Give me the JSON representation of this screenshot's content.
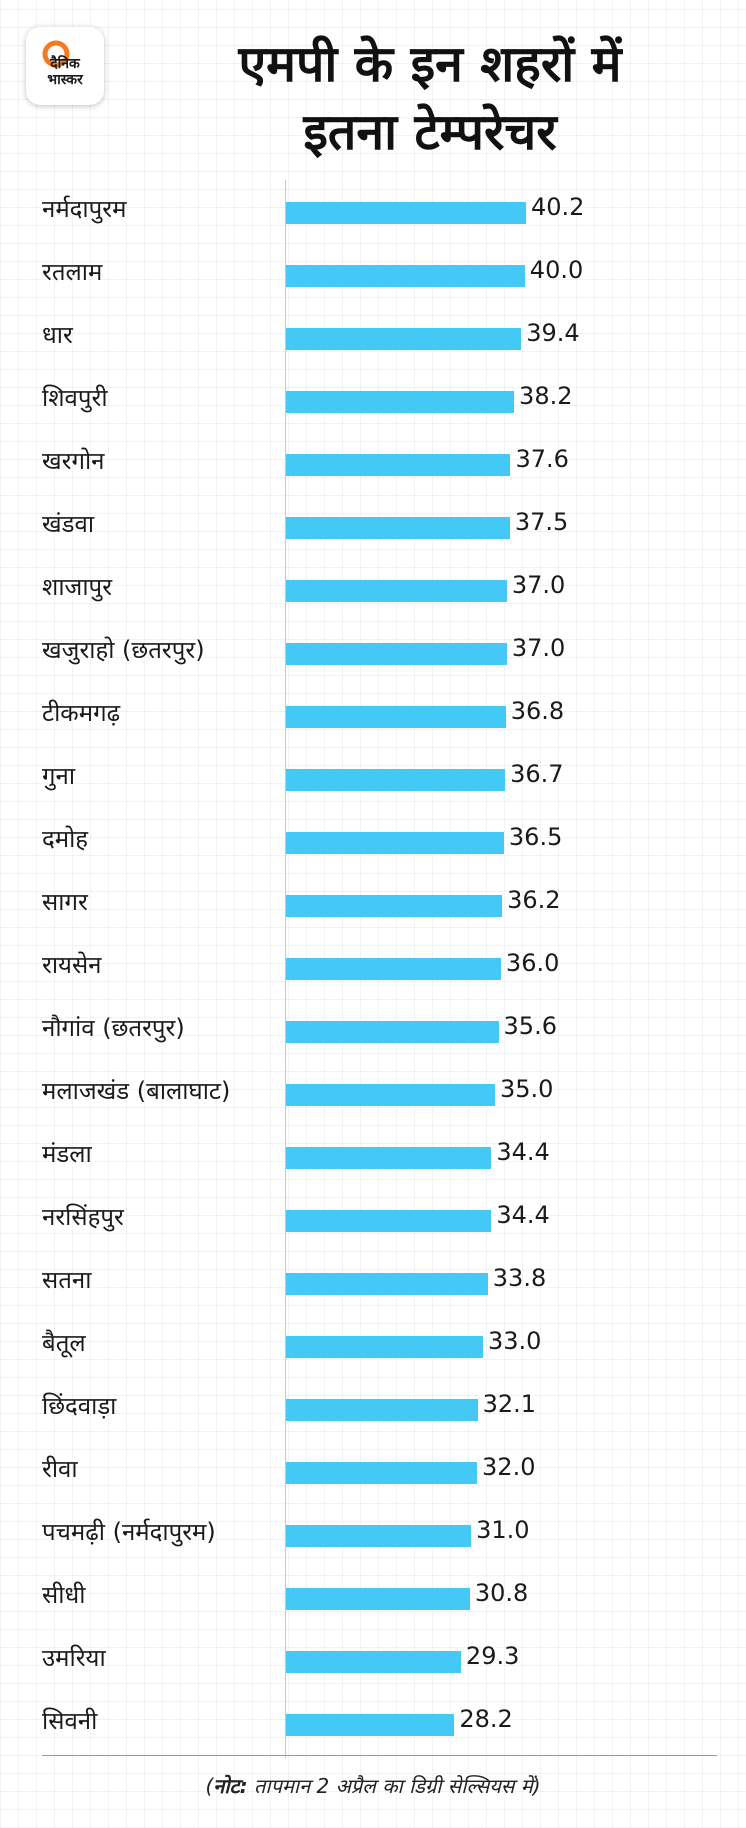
{
  "logo": {
    "line1": "दैनिक",
    "line2": "भास्कर"
  },
  "title": {
    "line1": "एमपी के इन शहरों में",
    "line2": "इतना टेम्परेचर"
  },
  "note": {
    "label": "नोट:",
    "text": "तापमान 2 अप्रैल का डिग्री सेल्सियस में"
  },
  "colors": {
    "bar": "#44c8f5",
    "logo_ring": "#f47b20"
  },
  "chart_data": {
    "type": "bar",
    "orientation": "horizontal",
    "categories": [
      "नर्मदापुरम",
      "रतलाम",
      "धार",
      "शिवपुरी",
      "खरगोन",
      "खंडवा",
      "शाजापुर",
      "खजुराहो (छतरपुर)",
      "टीकमगढ़",
      "गुना",
      "दमोह",
      "सागर",
      "रायसेन",
      "नौगांव (छतरपुर)",
      "मलाजखंड (बालाघाट)",
      "मंडला",
      "नरसिंहपुर",
      "सतना",
      "बैतूल",
      "छिंदवाड़ा",
      "रीवा",
      "पचमढ़ी (नर्मदापुरम)",
      "सीधी",
      "उमरिया",
      "सिवनी"
    ],
    "values": [
      40.2,
      40.0,
      39.4,
      38.2,
      37.6,
      37.5,
      37.0,
      37.0,
      36.8,
      36.7,
      36.5,
      36.2,
      36.0,
      35.6,
      35.0,
      34.4,
      34.4,
      33.8,
      33.0,
      32.1,
      32.0,
      31.0,
      30.8,
      29.3,
      28.2
    ],
    "labels": [
      "40.2",
      "40.0",
      "39.4",
      "38.2",
      "37.6",
      "37.5",
      "37.0",
      "37.0",
      "36.8",
      "36.7",
      "36.5",
      "36.2",
      "36.0",
      "35.6",
      "35.0",
      "34.4",
      "34.4",
      "33.8",
      "33.0",
      "32.1",
      "32.0",
      "31.0",
      "30.8",
      "29.3",
      "28.2"
    ],
    "xlim": [
      0,
      40.2
    ]
  }
}
